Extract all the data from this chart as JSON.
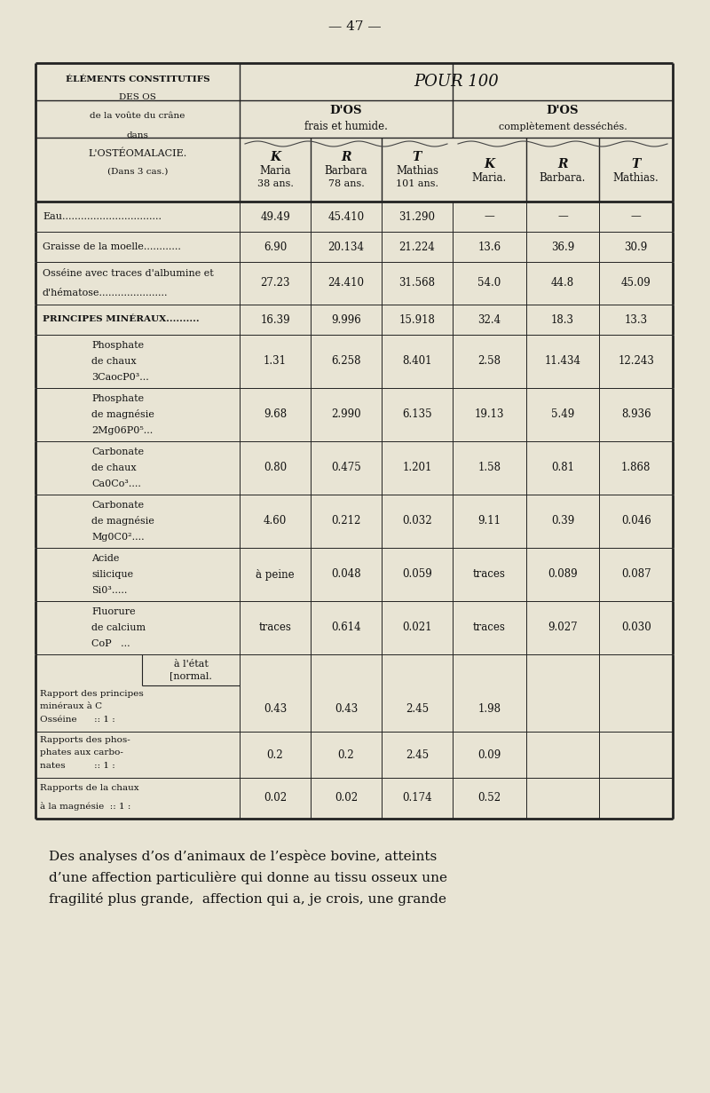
{
  "page_number": "47",
  "bg_color": "#e8e4d4",
  "text_color": "#111111",
  "title_center": "POUR 100",
  "dos_frais": "D'OS\nfrais et humide.",
  "dos_dessech": "D'OS\ncomplètement desséchés.",
  "header_left_lines": [
    "ÉLÉMENTS CONSTITUTIFS",
    "DES OS",
    "de la voûte du crâne",
    "dans",
    "L'OSTÉOMALACIE.",
    "(Dans 3 cas.)"
  ],
  "col_headers_frais": [
    [
      "K",
      "Maria",
      "38 ans."
    ],
    [
      "R",
      "Barbara",
      "78 ans."
    ],
    [
      "T",
      "Mathias",
      "101 ans."
    ]
  ],
  "col_headers_dessech": [
    [
      "K",
      "Maria."
    ],
    [
      "R",
      "Barbara."
    ],
    [
      "T",
      "Mathias."
    ]
  ],
  "rows": [
    {
      "label": "Eau................................",
      "indent": 0,
      "multiline": false,
      "small_caps": false,
      "values": [
        "49.49",
        "45.410",
        "31.290",
        "—",
        "—",
        "—"
      ]
    },
    {
      "label": "Graisse de la moelle............",
      "indent": 0,
      "multiline": false,
      "small_caps": false,
      "values": [
        "6.90",
        "20.134",
        "21.224",
        "13.6",
        "36.9",
        "30.9"
      ]
    },
    {
      "label": [
        "Osséine avec traces d'albumine et",
        "d'hématose......................"
      ],
      "indent": 0,
      "multiline": true,
      "small_caps": false,
      "values": [
        "27.23",
        "24.410",
        "31.568",
        "54.0",
        "44.8",
        "45.09"
      ]
    },
    {
      "label": "PRINCIPES MINÉRAUX..........",
      "indent": 0,
      "multiline": false,
      "small_caps": true,
      "values": [
        "16.39",
        "9.996",
        "15.918",
        "32.4",
        "18.3",
        "13.3"
      ]
    },
    {
      "label": [
        "Phosphate",
        "de chaux",
        "3CaocP0³..."
      ],
      "indent": 1,
      "multiline": true,
      "small_caps": false,
      "values": [
        "1.31",
        "6.258",
        "8.401",
        "2.58",
        "11.434",
        "12.243"
      ]
    },
    {
      "label": [
        "Phosphate",
        "de magnésie",
        "2Mg06P0⁵..."
      ],
      "indent": 1,
      "multiline": true,
      "small_caps": false,
      "values": [
        "9.68",
        "2.990",
        "6.135",
        "19.13",
        "5.49",
        "8.936"
      ]
    },
    {
      "label": [
        "Carbonate",
        "de chaux",
        "Ca0Co³...."
      ],
      "indent": 1,
      "multiline": true,
      "small_caps": false,
      "values": [
        "0.80",
        "0.475",
        "1.201",
        "1.58",
        "0.81",
        "1.868"
      ]
    },
    {
      "label": [
        "Carbonate",
        "de magnésie",
        "Mg0C0²...."
      ],
      "indent": 1,
      "multiline": true,
      "small_caps": false,
      "values": [
        "4.60",
        "0.212",
        "0.032",
        "9.11",
        "0.39",
        "0.046"
      ]
    },
    {
      "label": [
        "Acide",
        "silicique",
        "Si0³....."
      ],
      "indent": 1,
      "multiline": true,
      "small_caps": false,
      "values": [
        "à peine",
        "0.048",
        "0.059",
        "traces",
        "0.089",
        "0.087"
      ]
    },
    {
      "label": [
        "Fluorure",
        "de calcium",
        "CoP   ..."
      ],
      "indent": 1,
      "multiline": true,
      "small_caps": false,
      "values": [
        "traces",
        "0.614",
        "0.021",
        "traces",
        "9.027",
        "0.030"
      ]
    }
  ],
  "rapport_rows": [
    {
      "label": [
        "Rapport des principes",
        "minéraux à C",
        "Osséine      :: 1 :"
      ],
      "values": [
        "0.43",
        "0.43",
        "2.45",
        "1.98"
      ]
    },
    {
      "label": [
        "Rapports des phos-",
        "phates aux carbo-",
        "nates          :: 1 :"
      ],
      "values": [
        "0.2",
        "0.2",
        "2.45",
        "0.09"
      ]
    },
    {
      "label": [
        "Rapports de la chaux",
        "à la magnésie  :: 1 :"
      ],
      "values": [
        "0.02",
        "0.02",
        "0.174",
        "0.52"
      ]
    }
  ],
  "footer_lines": [
    "Des analyses d’os d’animaux de l’espèce bovine, atteints",
    "d’une affection particulière qui donne au tissu osseux une",
    "fragilité plus grande,  affection qui a, je crois, une grande"
  ]
}
